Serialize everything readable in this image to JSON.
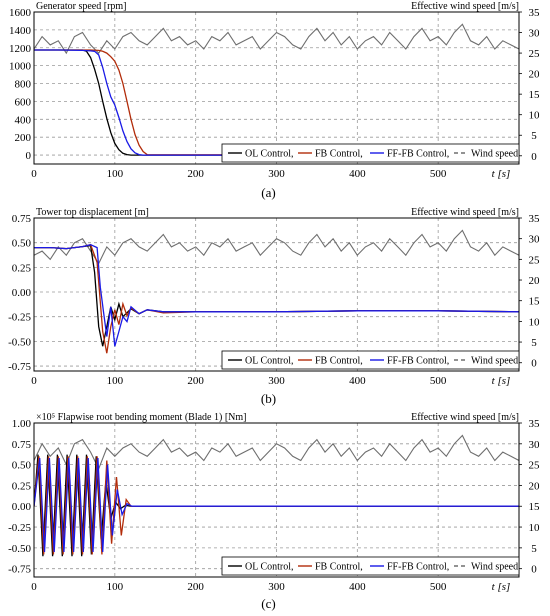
{
  "series_colors": {
    "ol": "#000000",
    "fb": "#b22c0a",
    "fffb": "#1a1ae6",
    "wind": "#6e6e6e"
  },
  "legend_labels": [
    "OL Control,",
    "FB Control,",
    "FF-FB Control,",
    "Wind speed"
  ],
  "chart_data": [
    {
      "id": "a",
      "type": "line",
      "sublabel": "(a)",
      "left_title": "Generator speed [rpm]",
      "right_title": "Effective wind speed [m/s]",
      "xlabel": "t [s]",
      "xlim": [
        0,
        600
      ],
      "xticks": [
        "0",
        "100",
        "200",
        "300",
        "400",
        "500"
      ],
      "ylim": [
        -100,
        1600
      ],
      "yticks": [
        "0",
        "200",
        "400",
        "600",
        "800",
        "1000",
        "1200",
        "1400",
        "1600"
      ],
      "y2lim": [
        -2,
        35
      ],
      "y2ticks": [
        "0",
        "5",
        "10",
        "15",
        "20",
        "25",
        "30",
        "35"
      ],
      "series": [
        {
          "key": "wind",
          "x": [
            0,
            10,
            20,
            30,
            40,
            50,
            60,
            70,
            80,
            90,
            100,
            110,
            120,
            130,
            140,
            150,
            160,
            170,
            180,
            190,
            200,
            210,
            220,
            230,
            240,
            250,
            260,
            270,
            280,
            290,
            300,
            310,
            320,
            330,
            340,
            350,
            360,
            370,
            380,
            390,
            400,
            410,
            420,
            430,
            440,
            450,
            460,
            470,
            480,
            490,
            500,
            510,
            520,
            530,
            540,
            550,
            560,
            570,
            580,
            590,
            600
          ],
          "y": [
            26,
            29,
            27,
            28,
            25,
            29,
            30,
            27,
            25,
            28,
            26,
            29,
            30,
            28,
            27,
            29,
            31,
            28,
            29,
            27,
            28,
            26,
            29,
            28,
            30,
            27,
            28,
            29,
            26,
            28,
            30,
            29,
            27,
            26,
            29,
            31,
            28,
            30,
            27,
            29,
            26,
            28,
            29,
            27,
            30,
            28,
            26,
            29,
            31,
            28,
            29,
            27,
            30,
            32,
            28,
            27,
            29,
            26,
            28,
            27,
            26
          ]
        },
        {
          "key": "ol",
          "x": [
            0,
            30,
            60,
            65,
            70,
            75,
            80,
            85,
            90,
            95,
            100,
            105,
            110,
            115,
            120,
            600
          ],
          "y": [
            1175,
            1175,
            1175,
            1160,
            1090,
            960,
            800,
            600,
            410,
            250,
            130,
            60,
            20,
            5,
            0,
            0
          ]
        },
        {
          "key": "fb",
          "x": [
            0,
            30,
            60,
            70,
            80,
            85,
            90,
            95,
            100,
            105,
            110,
            115,
            120,
            125,
            130,
            135,
            140,
            600
          ],
          "y": [
            1175,
            1175,
            1175,
            1175,
            1170,
            1160,
            1140,
            1100,
            1050,
            950,
            800,
            600,
            400,
            230,
            110,
            40,
            5,
            0
          ]
        },
        {
          "key": "fffb",
          "x": [
            0,
            30,
            60,
            70,
            75,
            80,
            85,
            90,
            95,
            100,
            105,
            110,
            115,
            120,
            125,
            130,
            135,
            600
          ],
          "y": [
            1175,
            1175,
            1170,
            1165,
            1160,
            1120,
            980,
            800,
            650,
            560,
            420,
            270,
            150,
            70,
            25,
            5,
            0,
            0
          ]
        }
      ]
    },
    {
      "id": "b",
      "type": "line",
      "sublabel": "(b)",
      "left_title": "Tower top displacement [m]",
      "right_title": "Effective wind speed [m/s]",
      "xlabel": "t [s]",
      "xlim": [
        0,
        600
      ],
      "xticks": [
        "0",
        "100",
        "200",
        "300",
        "400",
        "500"
      ],
      "ylim": [
        -0.8,
        0.75
      ],
      "yticks": [
        "-0.75",
        "-0.50",
        "-0.25",
        "0.00",
        "0.25",
        "0.50",
        "0.75"
      ],
      "y2lim": [
        -2,
        35
      ],
      "y2ticks": [
        "0",
        "5",
        "10",
        "15",
        "20",
        "25",
        "30",
        "35"
      ],
      "series": [
        {
          "key": "wind",
          "x": [
            0,
            10,
            20,
            30,
            40,
            50,
            60,
            70,
            80,
            90,
            100,
            110,
            120,
            130,
            140,
            150,
            160,
            170,
            180,
            190,
            200,
            210,
            220,
            230,
            240,
            250,
            260,
            270,
            280,
            290,
            300,
            310,
            320,
            330,
            340,
            350,
            360,
            370,
            380,
            390,
            400,
            410,
            420,
            430,
            440,
            450,
            460,
            470,
            480,
            490,
            500,
            510,
            520,
            530,
            540,
            550,
            560,
            570,
            580,
            590,
            600
          ],
          "y": [
            26,
            27,
            25,
            28,
            26,
            29,
            30,
            27,
            24,
            28,
            26,
            29,
            30,
            28,
            27,
            29,
            31,
            28,
            29,
            27,
            28,
            26,
            29,
            28,
            30,
            27,
            28,
            29,
            26,
            28,
            30,
            29,
            27,
            26,
            29,
            31,
            28,
            30,
            27,
            29,
            26,
            28,
            29,
            27,
            30,
            28,
            26,
            29,
            31,
            28,
            29,
            27,
            30,
            32,
            28,
            27,
            29,
            26,
            28,
            27,
            26
          ]
        },
        {
          "key": "ol",
          "x": [
            0,
            20,
            40,
            60,
            70,
            75,
            80,
            85,
            90,
            95,
            100,
            105,
            110,
            120,
            130,
            140,
            160,
            200,
            300,
            400,
            500,
            600
          ],
          "y": [
            0.45,
            0.45,
            0.44,
            0.46,
            0.47,
            0.2,
            -0.35,
            -0.55,
            -0.35,
            -0.15,
            -0.28,
            -0.12,
            -0.25,
            -0.17,
            -0.22,
            -0.18,
            -0.2,
            -0.2,
            -0.2,
            -0.19,
            -0.19,
            -0.2
          ]
        },
        {
          "key": "fb",
          "x": [
            0,
            20,
            40,
            60,
            70,
            78,
            85,
            90,
            95,
            100,
            105,
            110,
            115,
            120,
            130,
            140,
            160,
            200,
            300,
            400,
            500,
            600
          ],
          "y": [
            0.45,
            0.45,
            0.44,
            0.46,
            0.48,
            0.3,
            -0.4,
            -0.62,
            -0.35,
            -0.18,
            -0.33,
            -0.12,
            -0.24,
            -0.16,
            -0.22,
            -0.18,
            -0.21,
            -0.2,
            -0.2,
            -0.19,
            -0.19,
            -0.2
          ]
        },
        {
          "key": "fffb",
          "x": [
            0,
            20,
            40,
            60,
            70,
            78,
            82,
            86,
            90,
            95,
            100,
            105,
            110,
            115,
            120,
            130,
            140,
            160,
            200,
            300,
            400,
            500,
            600
          ],
          "y": [
            0.45,
            0.45,
            0.44,
            0.46,
            0.48,
            0.45,
            0.05,
            -0.2,
            -0.45,
            -0.15,
            -0.55,
            -0.4,
            -0.25,
            -0.3,
            -0.15,
            -0.22,
            -0.18,
            -0.2,
            -0.2,
            -0.2,
            -0.19,
            -0.19,
            -0.2
          ]
        }
      ]
    },
    {
      "id": "c",
      "type": "line",
      "sublabel": "(c)",
      "left_title": "×10⁵ Flapwise root bending moment (Blade 1) [Nm]",
      "right_title": "Effective wind speed [m/s]",
      "xlabel": "t [s]",
      "xlim": [
        0,
        600
      ],
      "xticks": [
        "0",
        "100",
        "200",
        "300",
        "400",
        "500"
      ],
      "ylim": [
        -0.85,
        1.0
      ],
      "yticks": [
        "-0.75",
        "-0.50",
        "-0.25",
        "0.00",
        "0.25",
        "0.50",
        "0.75",
        "1.00"
      ],
      "y2lim": [
        -2,
        35
      ],
      "y2ticks": [
        "0",
        "5",
        "10",
        "15",
        "20",
        "25",
        "30",
        "35"
      ],
      "series": [
        {
          "key": "wind",
          "x": [
            0,
            10,
            20,
            30,
            40,
            50,
            60,
            70,
            80,
            90,
            100,
            110,
            120,
            130,
            140,
            150,
            160,
            170,
            180,
            190,
            200,
            210,
            220,
            230,
            240,
            250,
            260,
            270,
            280,
            290,
            300,
            310,
            320,
            330,
            340,
            350,
            360,
            370,
            380,
            390,
            400,
            410,
            420,
            430,
            440,
            450,
            460,
            470,
            480,
            490,
            500,
            510,
            520,
            530,
            540,
            550,
            560,
            570,
            580,
            590,
            600
          ],
          "y": [
            26,
            30,
            27,
            29,
            25,
            30,
            31,
            28,
            24,
            29,
            27,
            29,
            30,
            28,
            27,
            29,
            31,
            28,
            29,
            27,
            28,
            26,
            29,
            28,
            30,
            27,
            28,
            29,
            26,
            28,
            30,
            29,
            27,
            26,
            29,
            31,
            28,
            30,
            27,
            29,
            26,
            28,
            29,
            27,
            30,
            28,
            26,
            29,
            31,
            28,
            29,
            27,
            30,
            32,
            28,
            27,
            29,
            26,
            28,
            27,
            26
          ]
        },
        {
          "key": "ol",
          "x": [
            0,
            5,
            11,
            17,
            23,
            29,
            35,
            41,
            47,
            53,
            59,
            65,
            71,
            77,
            83,
            89,
            95,
            101,
            107,
            113,
            120,
            140,
            200,
            300,
            400,
            500,
            600
          ],
          "y": [
            0,
            0.62,
            -0.6,
            0.62,
            -0.6,
            0.62,
            -0.6,
            0.62,
            -0.6,
            0.62,
            -0.6,
            0.62,
            -0.58,
            0.6,
            -0.4,
            0.3,
            -0.15,
            0.05,
            -0.03,
            0.01,
            0,
            0,
            0,
            0,
            0,
            0,
            0
          ]
        },
        {
          "key": "fb",
          "x": [
            0,
            6,
            12,
            18,
            24,
            30,
            36,
            42,
            48,
            54,
            60,
            66,
            72,
            78,
            84,
            90,
            96,
            102,
            108,
            114,
            120,
            140,
            200,
            300,
            400,
            500,
            600
          ],
          "y": [
            0,
            0.6,
            -0.58,
            0.6,
            -0.58,
            0.6,
            -0.58,
            0.6,
            -0.58,
            0.6,
            -0.58,
            0.6,
            -0.58,
            0.6,
            -0.58,
            0.55,
            -0.45,
            0.35,
            -0.35,
            0.08,
            0,
            0,
            0,
            0,
            0,
            0,
            0
          ]
        },
        {
          "key": "fffb",
          "x": [
            0,
            7,
            13,
            19,
            25,
            31,
            37,
            43,
            49,
            55,
            61,
            67,
            73,
            79,
            85,
            91,
            97,
            103,
            109,
            115,
            121,
            140,
            200,
            300,
            400,
            500,
            600
          ],
          "y": [
            0,
            0.58,
            -0.55,
            0.58,
            -0.55,
            0.58,
            -0.55,
            0.58,
            -0.55,
            0.58,
            -0.55,
            0.58,
            -0.55,
            0.58,
            -0.55,
            0.5,
            -0.35,
            0.2,
            -0.1,
            0.03,
            0,
            0,
            0,
            0,
            0,
            0,
            0
          ]
        }
      ]
    }
  ]
}
